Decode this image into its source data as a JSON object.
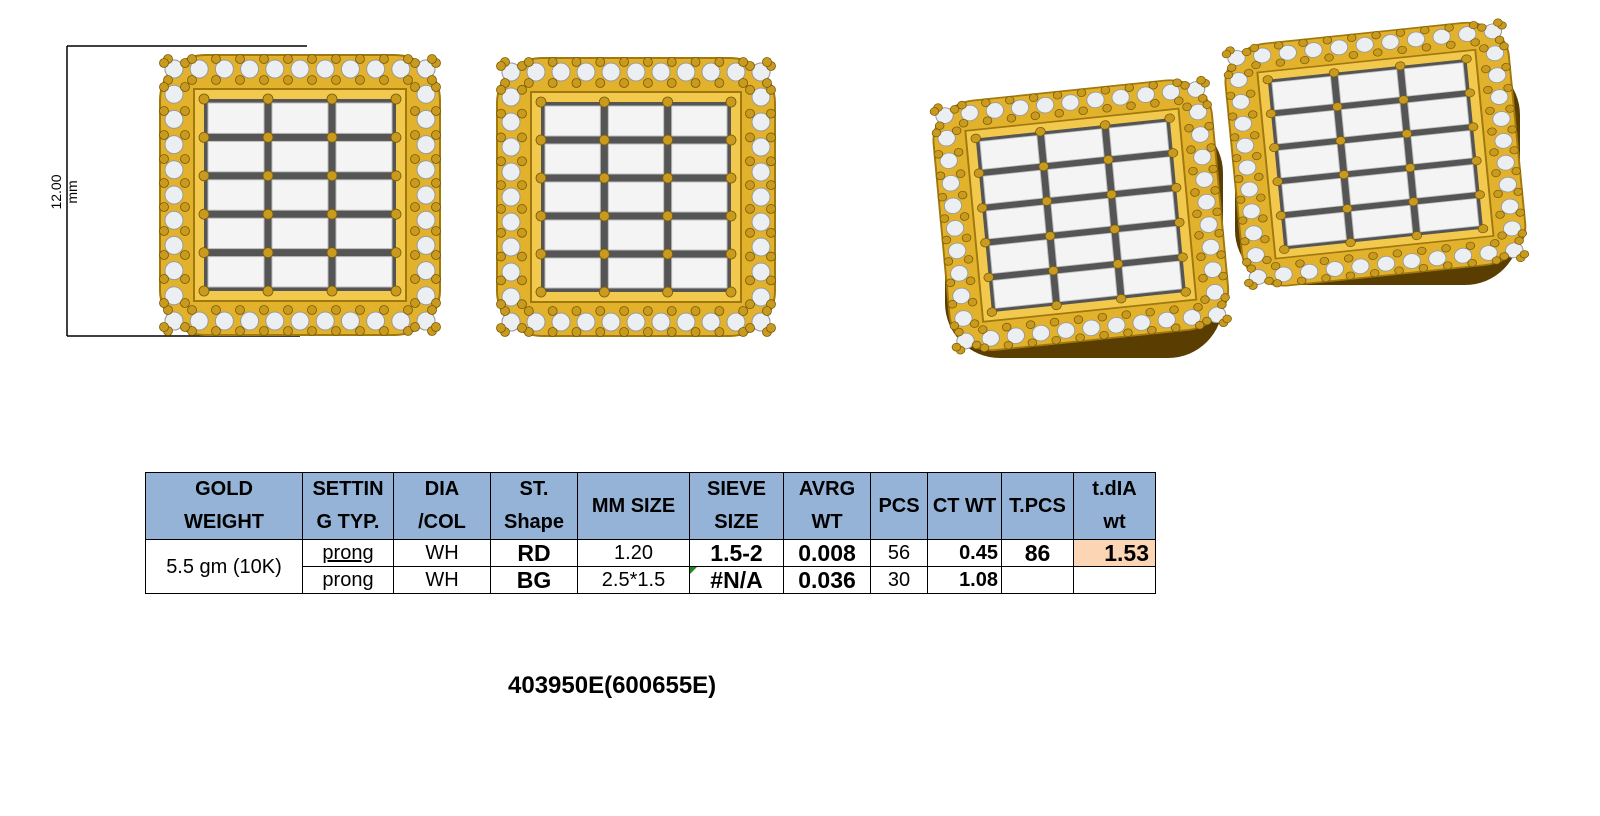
{
  "dimension_label": "12.00 mm",
  "colors": {
    "gold": "#e3b22c",
    "header_bg": "#95b3d7",
    "highlight": "#fcd5b4"
  },
  "table": {
    "headers": [
      "GOLD WEIGHT",
      "SETTIN G TYP.",
      "DIA /COL",
      "ST. Shape",
      "MM SIZE",
      "SIEVE SIZE",
      "AVRG WT",
      "PCS",
      "CT WT",
      "T.PCS",
      "t.dIA wt"
    ],
    "header_lines": [
      [
        "GOLD",
        "WEIGHT"
      ],
      [
        "SETTIN",
        "G TYP."
      ],
      [
        "DIA",
        "/COL"
      ],
      [
        "ST.",
        "Shape"
      ],
      [
        "MM SIZE"
      ],
      [
        "SIEVE",
        "SIZE"
      ],
      [
        "AVRG",
        "WT"
      ],
      [
        "PCS"
      ],
      [
        "CT WT"
      ],
      [
        "T.PCS"
      ],
      [
        "t.dIA",
        "wt"
      ]
    ],
    "gold_weight": "5.5 gm (10K)",
    "t_pcs": "86",
    "t_dia_wt": "1.53",
    "rows": [
      {
        "setting": "prong",
        "color": "WH",
        "shape": "RD",
        "mm_size": "1.20",
        "sieve": "1.5-2",
        "avg_wt": "0.008",
        "pcs": "56",
        "ct_wt": "0.45"
      },
      {
        "setting": "prong",
        "color": "WH",
        "shape": "BG",
        "mm_size": "2.5*1.5",
        "sieve": "#N/A",
        "avg_wt": "0.036",
        "pcs": "30",
        "ct_wt": "1.08"
      }
    ]
  },
  "design_code": "403950E(600655E)"
}
